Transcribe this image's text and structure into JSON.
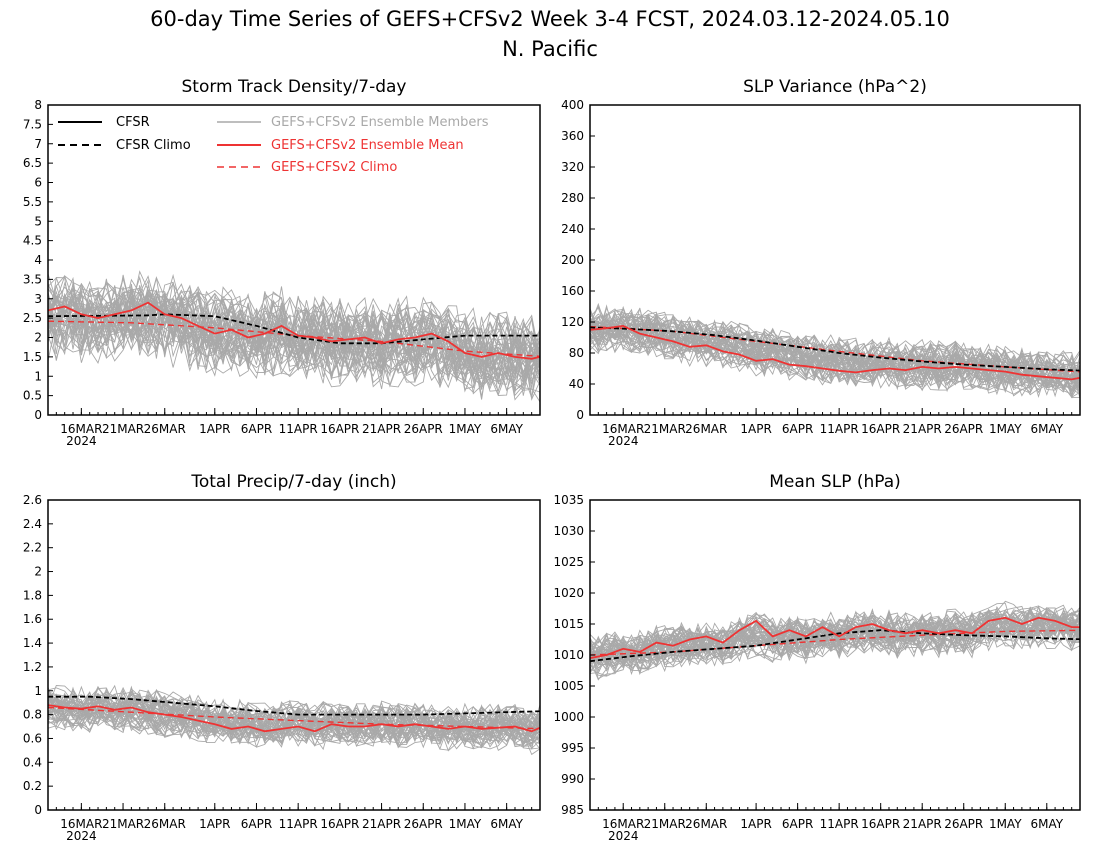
{
  "figure": {
    "title_line1": "60-day Time Series of GEFS+CFSv2 Week 3-4 FCST, 2024.03.12-2024.05.10",
    "title_line2": "N. Pacific"
  },
  "colors": {
    "cfsr": "#000000",
    "ensemble_members": "#a9a9a9",
    "ensemble_mean": "#ee3333",
    "gefs_climo": "#ee3333"
  },
  "legend": {
    "cfsr": "CFSR",
    "cfsr_climo": "CFSR Climo",
    "members": "GEFS+CFSv2 Ensemble Members",
    "mean": "GEFS+CFSv2 Ensemble Mean",
    "gefs_climo": "GEFS+CFSv2 Climo"
  },
  "x_axis": {
    "tick_days": [
      4,
      9,
      14,
      20,
      25,
      30,
      35,
      40,
      45,
      50,
      55
    ],
    "tick_labels": [
      "16MAR",
      "21MAR",
      "26MAR",
      "1APR",
      "6APR",
      "11APR",
      "16APR",
      "21APR",
      "26APR",
      "1MAY",
      "6MAY"
    ],
    "year_label": "2024"
  },
  "chart_data": [
    {
      "type": "line",
      "title": "Storm Track Density/7-day",
      "ylim": [
        0,
        8
      ],
      "yticks": [
        0,
        0.5,
        1,
        1.5,
        2,
        2.5,
        3,
        3.5,
        4,
        4.5,
        5,
        5.5,
        6,
        6.5,
        7,
        7.5,
        8
      ],
      "ytick_labels": [
        "0",
        "0.5",
        "1",
        "1.5",
        "2",
        "2.5",
        "3",
        "3.5",
        "4",
        "4.5",
        "5",
        "5.5",
        "6",
        "6.5",
        "7",
        "7.5",
        "8"
      ],
      "members": {
        "count": 48,
        "spread": 1.0
      },
      "series": {
        "cfsr_climo": {
          "x": [
            0,
            12,
            14,
            20,
            25,
            30,
            35,
            40,
            45,
            50,
            60
          ],
          "y": [
            2.55,
            2.57,
            2.6,
            2.55,
            2.3,
            2.0,
            1.85,
            1.85,
            1.95,
            2.05,
            2.05
          ]
        },
        "ensemble_mean": {
          "x": [
            0,
            2,
            4,
            6,
            8,
            10,
            12,
            14,
            16,
            18,
            20,
            22,
            24,
            26,
            28,
            30,
            32,
            34,
            36,
            38,
            40,
            42,
            44,
            46,
            48,
            50,
            52,
            54,
            56,
            58,
            60
          ],
          "y": [
            2.7,
            2.8,
            2.6,
            2.5,
            2.6,
            2.7,
            2.9,
            2.6,
            2.5,
            2.3,
            2.1,
            2.2,
            2.0,
            2.1,
            2.3,
            2.05,
            2.0,
            1.9,
            1.95,
            2.0,
            1.85,
            1.95,
            2.0,
            2.1,
            1.9,
            1.6,
            1.5,
            1.6,
            1.5,
            1.45,
            1.55
          ]
        },
        "gefs_climo": {
          "x": [
            0,
            10,
            20,
            30,
            40,
            50,
            60
          ],
          "y": [
            2.42,
            2.38,
            2.25,
            2.05,
            1.9,
            1.65,
            1.5
          ]
        }
      }
    },
    {
      "type": "line",
      "title": "SLP Variance (hPa^2)",
      "ylim": [
        0,
        400
      ],
      "yticks": [
        0,
        40,
        80,
        120,
        160,
        200,
        240,
        280,
        320,
        360,
        400
      ],
      "ytick_labels": [
        "0",
        "40",
        "80",
        "120",
        "160",
        "200",
        "240",
        "280",
        "320",
        "360",
        "400"
      ],
      "members": {
        "count": 48,
        "spread": 28
      },
      "series": {
        "cfsr_climo": {
          "x": [
            0,
            5,
            10,
            15,
            20,
            25,
            30,
            35,
            40,
            45,
            50,
            55,
            60
          ],
          "y": [
            113,
            111,
            108,
            103,
            96,
            88,
            80,
            74,
            69,
            65,
            62,
            59,
            57
          ]
        },
        "ensemble_mean": {
          "x": [
            0,
            2,
            4,
            6,
            8,
            10,
            12,
            14,
            16,
            18,
            20,
            22,
            24,
            26,
            28,
            30,
            32,
            34,
            36,
            38,
            40,
            42,
            44,
            46,
            48,
            50,
            52,
            54,
            56,
            58,
            60
          ],
          "y": [
            110,
            112,
            115,
            105,
            100,
            95,
            88,
            90,
            82,
            78,
            70,
            72,
            65,
            63,
            60,
            57,
            55,
            58,
            60,
            58,
            62,
            60,
            62,
            60,
            58,
            56,
            52,
            50,
            48,
            46,
            50
          ]
        },
        "gefs_climo": {
          "x": [
            0,
            10,
            20,
            30,
            40,
            50,
            60
          ],
          "y": [
            114,
            108,
            95,
            82,
            70,
            62,
            55
          ]
        }
      }
    },
    {
      "type": "line",
      "title": "Total Precip/7-day (inch)",
      "ylim": [
        0,
        2.6
      ],
      "yticks": [
        0,
        0.2,
        0.4,
        0.6,
        0.8,
        1,
        1.2,
        1.4,
        1.6,
        1.8,
        2,
        2.2,
        2.4,
        2.6
      ],
      "ytick_labels": [
        "0",
        "0.2",
        "0.4",
        "0.6",
        "0.8",
        "1",
        "1.2",
        "1.4",
        "1.6",
        "1.8",
        "2",
        "2.2",
        "2.4",
        "2.6"
      ],
      "members": {
        "count": 48,
        "spread": 0.17
      },
      "series": {
        "cfsr_climo": {
          "x": [
            0,
            5,
            10,
            15,
            20,
            25,
            30,
            35,
            40,
            45,
            50,
            55,
            60
          ],
          "y": [
            0.95,
            0.95,
            0.93,
            0.9,
            0.87,
            0.83,
            0.8,
            0.8,
            0.8,
            0.8,
            0.81,
            0.82,
            0.83
          ]
        },
        "ensemble_mean": {
          "x": [
            0,
            2,
            4,
            6,
            8,
            10,
            12,
            14,
            16,
            18,
            20,
            22,
            24,
            26,
            28,
            30,
            32,
            34,
            36,
            38,
            40,
            42,
            44,
            46,
            48,
            50,
            52,
            54,
            56,
            58,
            60
          ],
          "y": [
            0.88,
            0.86,
            0.85,
            0.87,
            0.84,
            0.86,
            0.82,
            0.8,
            0.78,
            0.75,
            0.72,
            0.68,
            0.7,
            0.66,
            0.68,
            0.7,
            0.66,
            0.72,
            0.7,
            0.7,
            0.72,
            0.7,
            0.72,
            0.7,
            0.68,
            0.7,
            0.68,
            0.69,
            0.7,
            0.66,
            0.72
          ]
        },
        "gefs_climo": {
          "x": [
            0,
            10,
            20,
            30,
            40,
            50,
            60
          ],
          "y": [
            0.86,
            0.82,
            0.78,
            0.75,
            0.72,
            0.7,
            0.68
          ]
        }
      }
    },
    {
      "type": "line",
      "title": "Mean SLP (hPa)",
      "ylim": [
        985,
        1035
      ],
      "yticks": [
        985,
        990,
        995,
        1000,
        1005,
        1010,
        1015,
        1020,
        1025,
        1030,
        1035
      ],
      "ytick_labels": [
        "985",
        "990",
        "995",
        "1000",
        "1005",
        "1010",
        "1015",
        "1020",
        "1025",
        "1030",
        "1035"
      ],
      "members": {
        "count": 48,
        "spread": 3.2
      },
      "series": {
        "cfsr_climo": {
          "x": [
            0,
            5,
            10,
            15,
            20,
            25,
            30,
            35,
            40,
            45,
            50,
            55,
            60
          ],
          "y": [
            1009,
            1009.8,
            1010.5,
            1011,
            1011.5,
            1012.5,
            1013.5,
            1014,
            1013.5,
            1013.2,
            1013,
            1012.7,
            1012.5
          ]
        },
        "ensemble_mean": {
          "x": [
            0,
            2,
            4,
            6,
            8,
            10,
            12,
            14,
            16,
            18,
            20,
            22,
            24,
            26,
            28,
            30,
            32,
            34,
            36,
            38,
            40,
            42,
            44,
            46,
            48,
            50,
            52,
            54,
            56,
            58,
            60
          ],
          "y": [
            1009.5,
            1010,
            1011,
            1010.5,
            1012,
            1011.5,
            1012.5,
            1013,
            1012,
            1014,
            1015.5,
            1013,
            1014,
            1013,
            1014.5,
            1013,
            1014.5,
            1015,
            1014,
            1013.5,
            1014,
            1013.5,
            1014,
            1013.5,
            1015.5,
            1016,
            1015,
            1016,
            1015.5,
            1014.5,
            1014.5
          ]
        },
        "gefs_climo": {
          "x": [
            0,
            10,
            20,
            30,
            40,
            50,
            60
          ],
          "y": [
            1010,
            1010.5,
            1011.5,
            1012.5,
            1013.2,
            1013.8,
            1014
          ]
        }
      }
    }
  ]
}
